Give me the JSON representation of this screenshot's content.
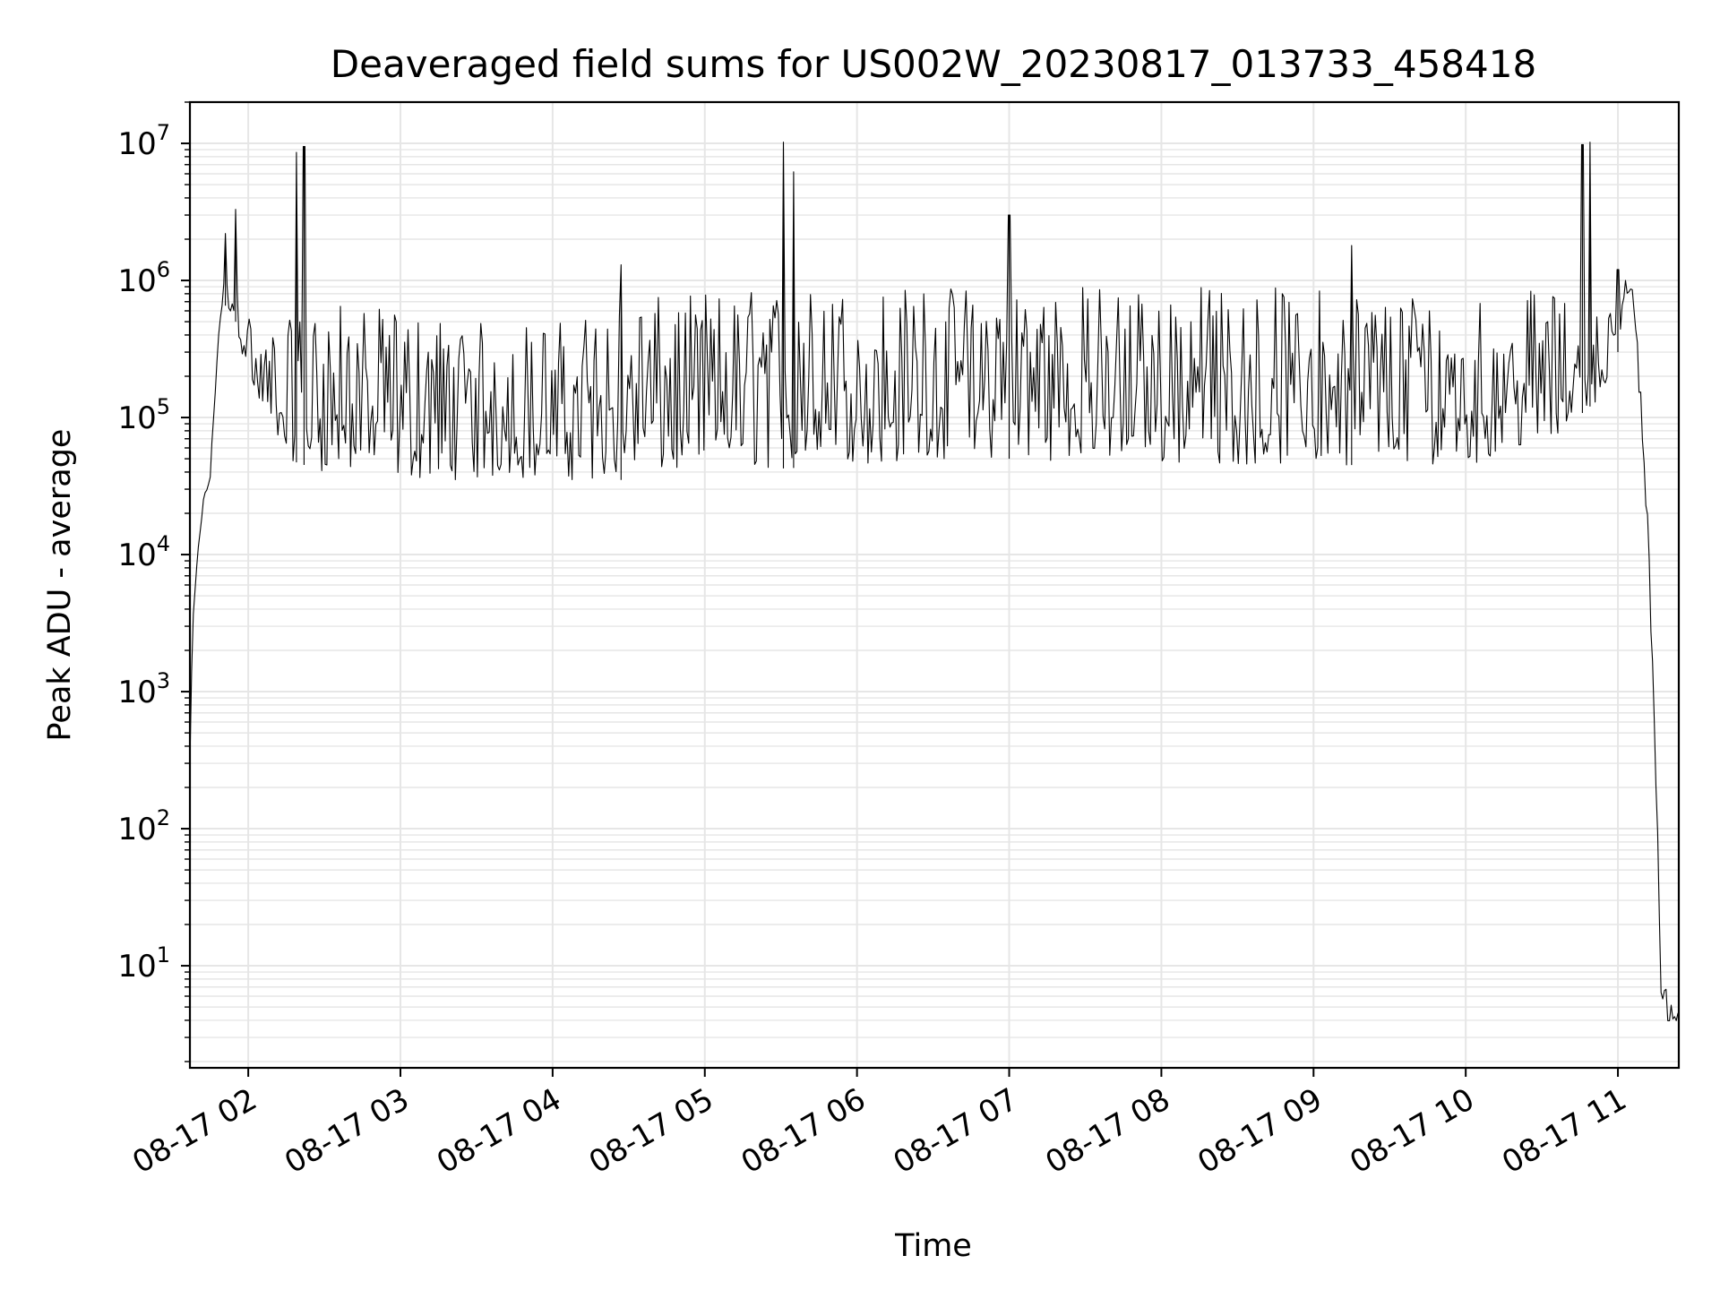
{
  "chart_data": {
    "type": "line",
    "title": "Deaveraged field sums for US002W_20230817_013733_458418",
    "xlabel": "Time",
    "ylabel": "Peak ADU - average",
    "yscale": "log",
    "grid": true,
    "colors": {
      "line": "#000000",
      "grid": "#e6e6e6",
      "axis": "#000000"
    },
    "x_range": [
      "08-17 01:37",
      "08-17 11:24"
    ],
    "ylim": [
      1.8,
      20000000
    ],
    "x_ticks": [
      {
        "time": "08-17 02:00",
        "label": "08-17 02"
      },
      {
        "time": "08-17 03:00",
        "label": "08-17 03"
      },
      {
        "time": "08-17 04:00",
        "label": "08-17 04"
      },
      {
        "time": "08-17 05:00",
        "label": "08-17 05"
      },
      {
        "time": "08-17 06:00",
        "label": "08-17 06"
      },
      {
        "time": "08-17 07:00",
        "label": "08-17 07"
      },
      {
        "time": "08-17 08:00",
        "label": "08-17 08"
      },
      {
        "time": "08-17 09:00",
        "label": "08-17 09"
      },
      {
        "time": "08-17 10:00",
        "label": "08-17 10"
      },
      {
        "time": "08-17 11:00",
        "label": "08-17 11"
      }
    ],
    "y_ticks": [
      {
        "value": 10,
        "base": "10",
        "exp": "1"
      },
      {
        "value": 100,
        "base": "10",
        "exp": "2"
      },
      {
        "value": 1000,
        "base": "10",
        "exp": "3"
      },
      {
        "value": 10000,
        "base": "10",
        "exp": "4"
      },
      {
        "value": 100000,
        "base": "10",
        "exp": "5"
      },
      {
        "value": 1000000,
        "base": "10",
        "exp": "6"
      },
      {
        "value": 10000000,
        "base": "10",
        "exp": "7"
      }
    ],
    "series": [
      {
        "envelope": [
          {
            "x": "08-17 01:37",
            "low": 300,
            "high": 300
          },
          {
            "x": "08-17 01:38",
            "low": 3000,
            "high": 3000
          },
          {
            "x": "08-17 01:40",
            "low": 10000,
            "high": 10000
          },
          {
            "x": "08-17 01:42",
            "low": 20000,
            "high": 25000
          },
          {
            "x": "08-17 01:45",
            "low": 35000,
            "high": 40000
          },
          {
            "x": "08-17 01:48",
            "low": 300000,
            "high": 400000
          },
          {
            "x": "08-17 01:50",
            "low": 700000,
            "high": 1000000
          },
          {
            "x": "08-17 01:55",
            "low": 500000,
            "high": 900000
          },
          {
            "x": "08-17 02:00",
            "low": 180000,
            "high": 600000
          },
          {
            "x": "08-17 02:05",
            "low": 100000,
            "high": 400000
          },
          {
            "x": "08-17 02:15",
            "low": 50000,
            "high": 500000
          },
          {
            "x": "08-17 02:30",
            "low": 40000,
            "high": 700000
          },
          {
            "x": "08-17 03:00",
            "low": 35000,
            "high": 600000
          },
          {
            "x": "08-17 03:30",
            "low": 35000,
            "high": 500000
          },
          {
            "x": "08-17 04:00",
            "low": 35000,
            "high": 500000
          },
          {
            "x": "08-17 04:30",
            "low": 35000,
            "high": 700000
          },
          {
            "x": "08-17 05:00",
            "low": 40000,
            "high": 850000
          },
          {
            "x": "08-17 06:00",
            "low": 45000,
            "high": 900000
          },
          {
            "x": "08-17 07:00",
            "low": 50000,
            "high": 950000
          },
          {
            "x": "08-17 08:00",
            "low": 45000,
            "high": 950000
          },
          {
            "x": "08-17 09:00",
            "low": 45000,
            "high": 900000
          },
          {
            "x": "08-17 10:00",
            "low": 45000,
            "high": 850000
          },
          {
            "x": "08-17 10:30",
            "low": 60000,
            "high": 850000
          },
          {
            "x": "08-17 10:55",
            "low": 150000,
            "high": 600000
          },
          {
            "x": "08-17 11:00",
            "low": 300000,
            "high": 600000
          },
          {
            "x": "08-17 11:03",
            "low": 800000,
            "high": 1100000
          },
          {
            "x": "08-17 11:06",
            "low": 700000,
            "high": 900000
          },
          {
            "x": "08-17 11:10",
            "low": 50000,
            "high": 100000
          },
          {
            "x": "08-17 11:12",
            "low": 10000,
            "high": 15000
          },
          {
            "x": "08-17 11:15",
            "low": 200,
            "high": 300
          },
          {
            "x": "08-17 11:16",
            "low": 50,
            "high": 70
          },
          {
            "x": "08-17 11:17",
            "low": 4,
            "high": 8
          },
          {
            "x": "08-17 11:24",
            "low": 3.8,
            "high": 4.5
          }
        ],
        "spikes": [
          {
            "x": "08-17 01:51",
            "value": 2200000
          },
          {
            "x": "08-17 01:55",
            "value": 3300000
          },
          {
            "x": "08-17 02:19",
            "value": 8600000
          },
          {
            "x": "08-17 02:22",
            "value": 9500000
          },
          {
            "x": "08-17 04:27",
            "value": 1300000
          },
          {
            "x": "08-17 05:31",
            "value": 10200000
          },
          {
            "x": "08-17 05:35",
            "value": 6200000
          },
          {
            "x": "08-17 07:00",
            "value": 3000000
          },
          {
            "x": "08-17 09:15",
            "value": 1800000
          },
          {
            "x": "08-17 10:46",
            "value": 9800000
          },
          {
            "x": "08-17 10:49",
            "value": 10200000
          },
          {
            "x": "08-17 11:00",
            "value": 1200000
          }
        ],
        "samples_per_hour": 90
      }
    ]
  }
}
